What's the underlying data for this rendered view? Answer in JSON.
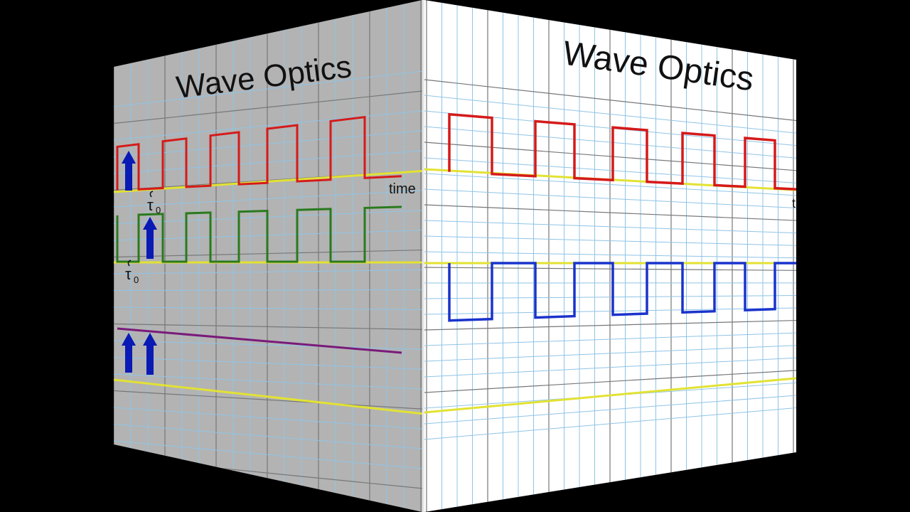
{
  "slide": {
    "left_face": {
      "title": "Wave Optics",
      "time_label": "time",
      "tau_label_1": "τ",
      "tau_sub_1": "0",
      "tau_label_2": "τ",
      "tau_sub_2": "0"
    },
    "right_face": {
      "title": "Wave Optics",
      "time_label_partial": "t"
    }
  },
  "colors": {
    "background": "#000000",
    "left_face_bg": "#b3b3b3",
    "right_face_bg": "#ffffff",
    "grid_minor": "#8fc4e6",
    "grid_major": "#777777",
    "axis": "#e2e234",
    "wave_red": "#d51a1a",
    "wave_green": "#2a7a1e",
    "wave_blue": "#1a33cc",
    "line_purple": "#7a1a7a",
    "arrow": "#0a1ab4"
  },
  "icons": {
    "arrow": "up-arrow-icon"
  }
}
